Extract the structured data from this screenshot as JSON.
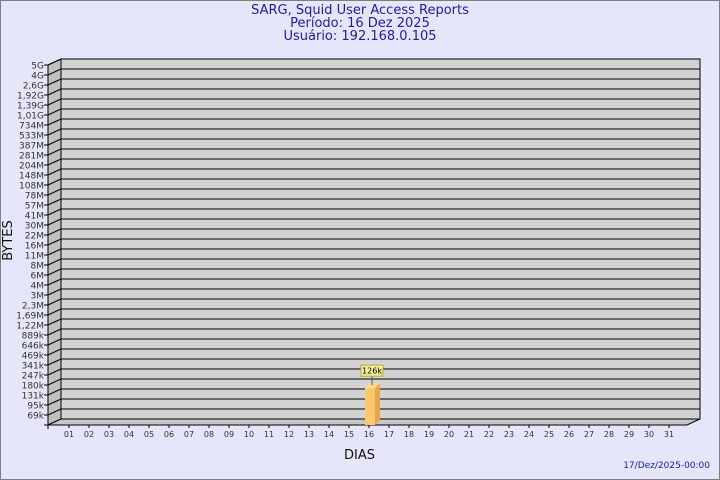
{
  "chart_data": {
    "type": "bar",
    "title": "SARG, Squid User Access Reports",
    "subtitle_period": "Período: 16 Dez 2025",
    "subtitle_user": "Usuário: 192.168.0.105",
    "xlabel": "DIAS",
    "ylabel": "BYTES",
    "categories": [
      "01",
      "02",
      "03",
      "04",
      "05",
      "06",
      "07",
      "08",
      "09",
      "10",
      "11",
      "12",
      "13",
      "14",
      "15",
      "16",
      "17",
      "18",
      "19",
      "20",
      "21",
      "22",
      "23",
      "24",
      "25",
      "26",
      "27",
      "28",
      "29",
      "30",
      "31"
    ],
    "y_tick_labels": [
      "5G",
      "4G",
      "2,6G",
      "1,92G",
      "1,39G",
      "1,01G",
      "734M",
      "533M",
      "387M",
      "281M",
      "204M",
      "148M",
      "108M",
      "78M",
      "57M",
      "41M",
      "30M",
      "22M",
      "16M",
      "11M",
      "8M",
      "6M",
      "4M",
      "3M",
      "2,3M",
      "1,69M",
      "1,22M",
      "889k",
      "646k",
      "469k",
      "341k",
      "247k",
      "180k",
      "131k",
      "95k",
      "69k"
    ],
    "series": [
      {
        "values_by_day": {
          "16": 126000
        },
        "data_labels": {
          "16": "126k"
        }
      }
    ],
    "grid": true,
    "colors": {
      "bar": "#ffc86a",
      "bar_side": "#e0a84a",
      "wall": "#d3d3d3",
      "title": "#1c1caa",
      "background": "#e6e6fa",
      "label_box": "#f5ee9a"
    }
  },
  "footer": {
    "timestamp": "17/Dez/2025-00:00"
  }
}
